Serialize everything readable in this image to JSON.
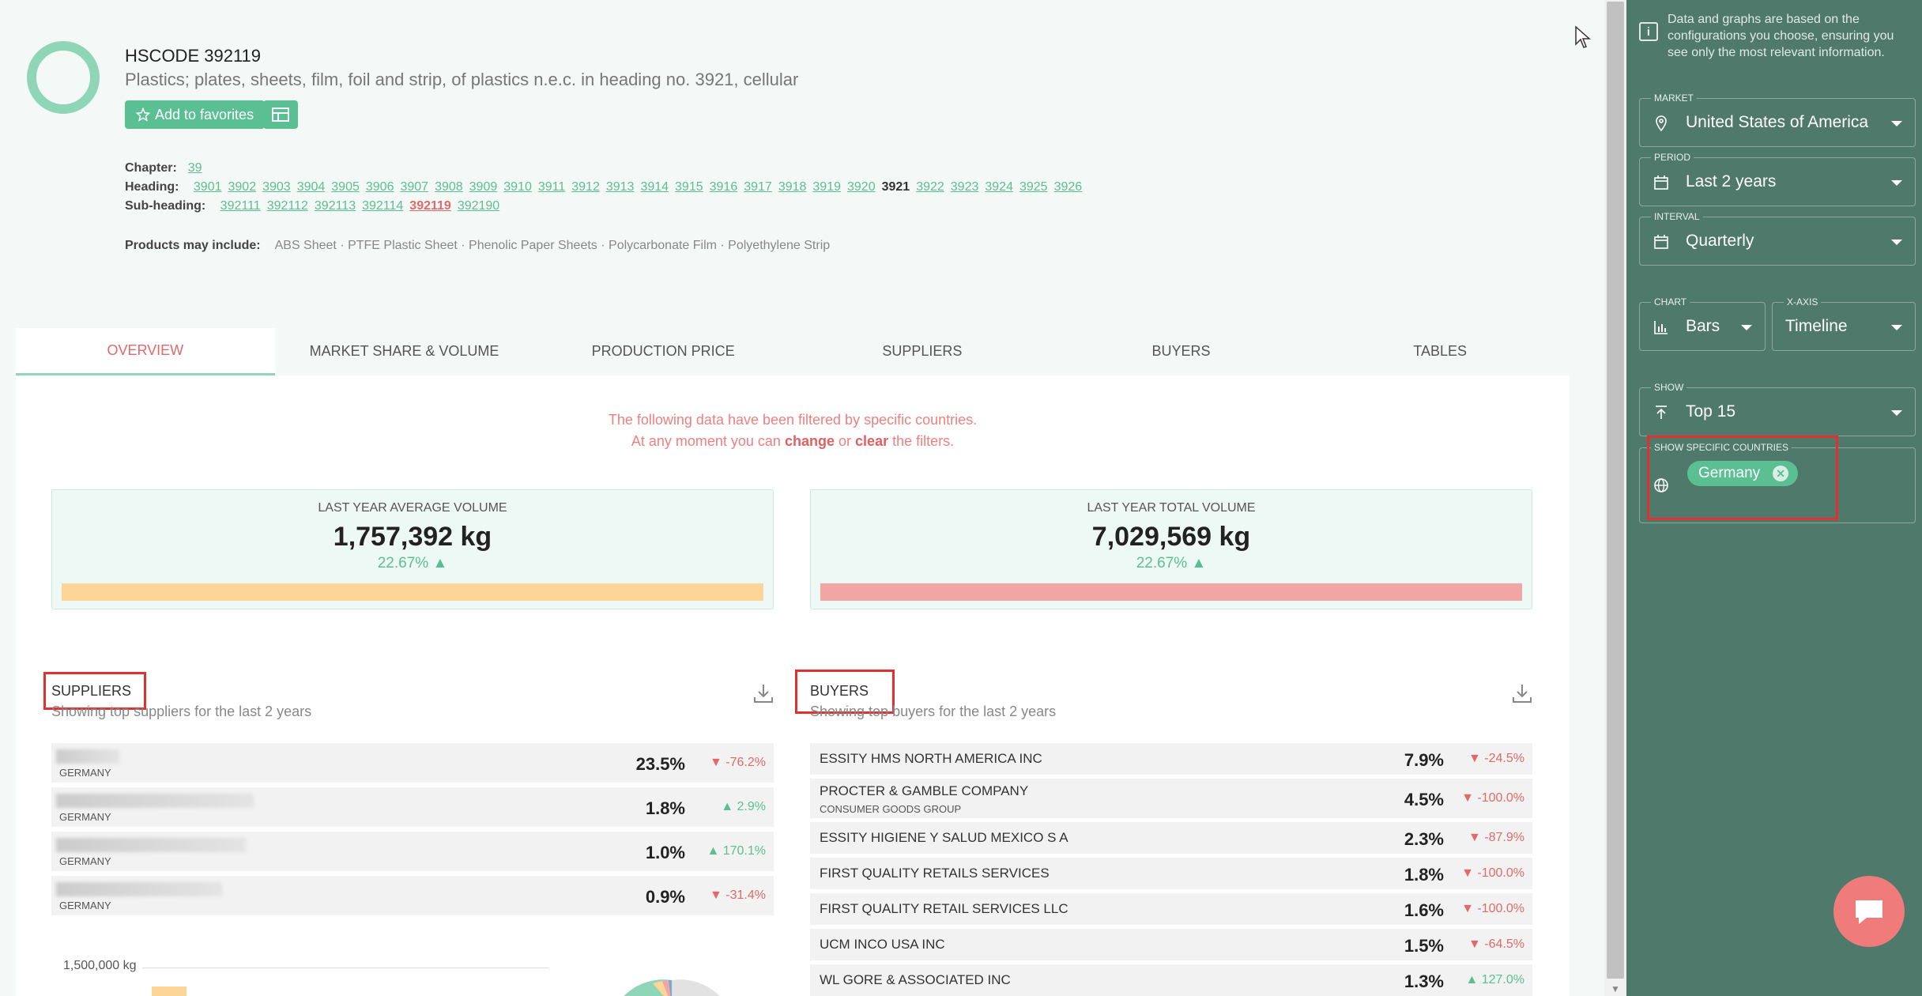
{
  "header": {
    "hscode": "HSCODE 392119",
    "description": "Plastics; plates, sheets, film, foil and strip, of plastics n.e.c. in heading no. 3921, cellular",
    "favorites_label": "Add to favorites",
    "chapter_label": "Chapter:",
    "chapter": "39",
    "heading_label": "Heading:",
    "headings": [
      "3901",
      "3902",
      "3903",
      "3904",
      "3905",
      "3906",
      "3907",
      "3908",
      "3909",
      "3910",
      "3911",
      "3912",
      "3913",
      "3914",
      "3915",
      "3916",
      "3917",
      "3918",
      "3919",
      "3920",
      "3921",
      "3922",
      "3923",
      "3924",
      "3925",
      "3926"
    ],
    "current_heading": "3921",
    "subheading_label": "Sub-heading:",
    "subheadings": [
      "392111",
      "392112",
      "392113",
      "392114",
      "392119",
      "392190"
    ],
    "current_subheading": "392119",
    "products_label": "Products may include:",
    "products": "ABS Sheet · PTFE Plastic Sheet · Phenolic Paper Sheets · Polycarbonate Film · Polyethylene Strip"
  },
  "tabs": [
    "OVERVIEW",
    "MARKET SHARE & VOLUME",
    "PRODUCTION PRICE",
    "SUPPLIERS",
    "BUYERS",
    "TABLES"
  ],
  "filter_note": {
    "line1": "The following data have been filtered by specific countries.",
    "line2_pre": "At any moment you can",
    "change": "change",
    "or": "or",
    "clear": "clear",
    "line2_post": "the filters."
  },
  "kpis": [
    {
      "label": "LAST YEAR AVERAGE VOLUME",
      "value": "1,757,392 kg",
      "change": "22.67%",
      "bar_color": "#fdd597"
    },
    {
      "label": "LAST YEAR TOTAL VOLUME",
      "value": "7,029,569 kg",
      "change": "22.67%",
      "bar_color": "#f2a5a5"
    }
  ],
  "suppliers": {
    "title": "SUPPLIERS",
    "subtitle": "Showing top suppliers for the last 2 years",
    "rows": [
      {
        "country": "GERMANY",
        "pct": "23.5%",
        "change": "-76.2%",
        "dir": "down"
      },
      {
        "country": "GERMANY",
        "pct": "1.8%",
        "change": "2.9%",
        "dir": "up"
      },
      {
        "country": "GERMANY",
        "pct": "1.0%",
        "change": "170.1%",
        "dir": "up"
      },
      {
        "country": "GERMANY",
        "pct": "0.9%",
        "change": "-31.4%",
        "dir": "down"
      }
    ]
  },
  "buyers": {
    "title": "BUYERS",
    "subtitle": "Showing top buyers for the last 2 years",
    "rows": [
      {
        "name": "ESSITY HMS NORTH AMERICA INC",
        "sub": "",
        "pct": "7.9%",
        "change": "-24.5%",
        "dir": "down"
      },
      {
        "name": "PROCTER & GAMBLE COMPANY",
        "sub": "CONSUMER GOODS GROUP",
        "pct": "4.5%",
        "change": "-100.0%",
        "dir": "down"
      },
      {
        "name": "ESSITY HIGIENE Y SALUD MEXICO S A",
        "sub": "",
        "pct": "2.3%",
        "change": "-87.9%",
        "dir": "down"
      },
      {
        "name": "FIRST QUALITY RETAILS SERVICES",
        "sub": "",
        "pct": "1.8%",
        "change": "-100.0%",
        "dir": "down"
      },
      {
        "name": "FIRST QUALITY RETAIL SERVICES LLC",
        "sub": "",
        "pct": "1.6%",
        "change": "-100.0%",
        "dir": "down"
      },
      {
        "name": "UCM INCO USA INC",
        "sub": "",
        "pct": "1.5%",
        "change": "-64.5%",
        "dir": "down"
      },
      {
        "name": "WL GORE & ASSOCIATED INC",
        "sub": "",
        "pct": "1.3%",
        "change": "127.0%",
        "dir": "up"
      }
    ]
  },
  "chart_peek": {
    "ytick": "1,500,000 kg"
  },
  "sidebar": {
    "info": "Data and graphs are based on the configurations you choose, ensuring you see only the most relevant information.",
    "market_label": "MARKET",
    "market": "United States of America",
    "period_label": "PERIOD",
    "period": "Last 2 years",
    "interval_label": "INTERVAL",
    "interval": "Quarterly",
    "chart_label": "CHART",
    "chart": "Bars",
    "xaxis_label": "X-AXIS",
    "xaxis": "Timeline",
    "show_label": "SHOW",
    "show": "Top 15",
    "countries_label": "SHOW SPECIFIC COUNTRIES",
    "country_chip": "Germany"
  }
}
